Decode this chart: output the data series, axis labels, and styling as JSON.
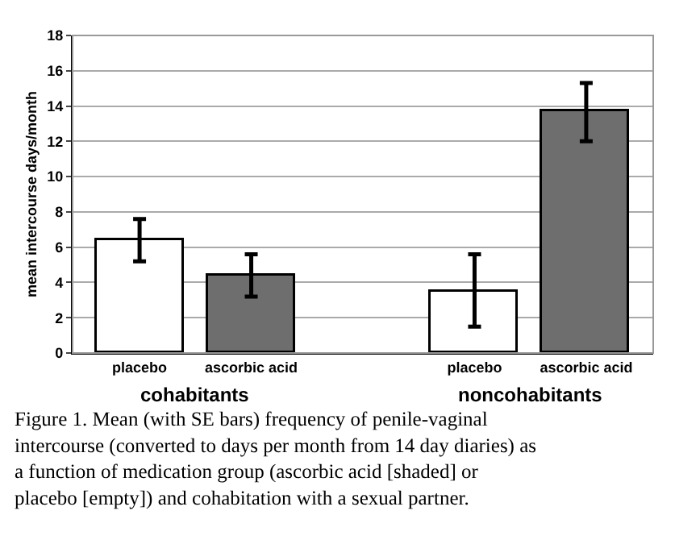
{
  "chart_data": {
    "type": "bar",
    "ylabel": "mean intercourse days/month",
    "categories": [
      "placebo",
      "ascorbic acid",
      null,
      "placebo",
      "ascorbic acid"
    ],
    "values": [
      6.4,
      4.4,
      null,
      3.5,
      13.7
    ],
    "errors": [
      [
        5.2,
        7.6
      ],
      [
        3.2,
        5.6
      ],
      null,
      [
        1.5,
        5.6
      ],
      [
        12.0,
        15.3
      ]
    ],
    "colors": [
      "#ffffff",
      "#6e6e6e",
      null,
      "#ffffff",
      "#6e6e6e"
    ],
    "ylim": [
      0,
      18
    ],
    "yticks": [
      0,
      2,
      4,
      6,
      8,
      10,
      12,
      14,
      16,
      18
    ],
    "grid": "y",
    "annotations": [
      "cohabitants",
      "noncohabitants",
      "Figure 1. Mean (with SE bars) frequency of penile-vaginal intercourse (converted to days per month from 14 day diaries) as a function of medication group (ascorbic acid [shaded] or placebo [empty]) and cohabitation with a sexual partner."
    ]
  }
}
